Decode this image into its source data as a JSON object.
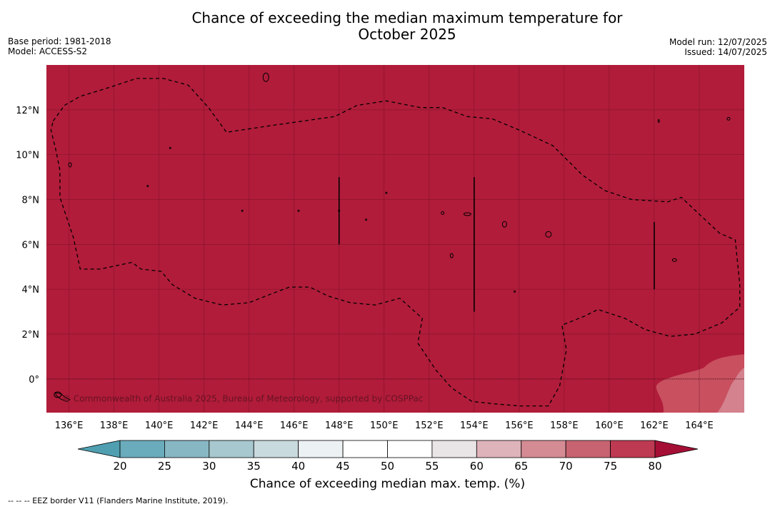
{
  "title_line1": "Chance of exceeding the median maximum temperature for",
  "title_line2": "October 2025",
  "meta_left": [
    "Base period: 1981-2018",
    "Model: ACCESS-S2"
  ],
  "meta_right": [
    "Model run: 12/07/2025",
    "Issued: 14/07/2025"
  ],
  "map": {
    "lon_range": [
      135,
      166
    ],
    "lat_range": [
      -1.5,
      14
    ],
    "lon_ticks": [
      "136°E",
      "138°E",
      "140°E",
      "142°E",
      "144°E",
      "146°E",
      "148°E",
      "150°E",
      "152°E",
      "154°E",
      "156°E",
      "158°E",
      "160°E",
      "162°E",
      "164°E"
    ],
    "lat_ticks": [
      "12°N",
      "10°N",
      "8°N",
      "6°N",
      "4°N",
      "2°N",
      "0°"
    ],
    "background_color": "#b11c3a",
    "attribution": "© Commonwealth of Australia 2025, Bureau of Meteorology, supported by COSPPac"
  },
  "colorbar": {
    "label": "Chance of exceeding median max. temp. (%)",
    "ticks": [
      "20",
      "25",
      "30",
      "35",
      "40",
      "45",
      "50",
      "55",
      "60",
      "65",
      "70",
      "75",
      "80"
    ],
    "colors": [
      "#6aacbc",
      "#88b7c4",
      "#a7c8cf",
      "#c9dadf",
      "#ecf1f3",
      "#ffffff",
      "#ffffff",
      "#e9e4e6",
      "#dfb3ba",
      "#d48b94",
      "#c86372",
      "#bd3a52"
    ],
    "under_color": "#4f9fb1",
    "over_color": "#a50f35"
  },
  "footnote": "-- -- -- EEZ border V11 (Flanders Marine Institute, 2019)."
}
